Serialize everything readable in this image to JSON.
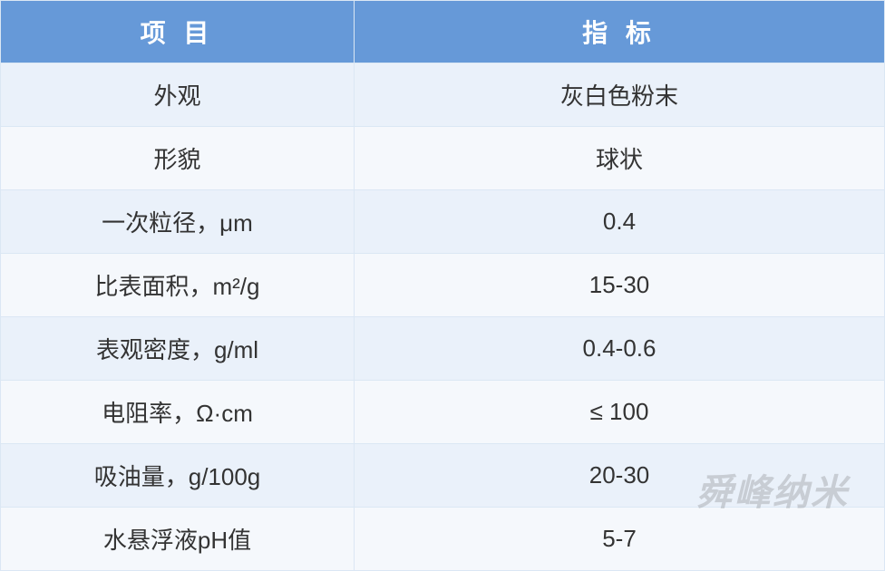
{
  "table": {
    "header_bg": "#6699d8",
    "header_text_color": "#ffffff",
    "row_bg_odd": "#eaf1fa",
    "row_bg_even": "#f5f8fc",
    "border_color": "#dbe7f4",
    "text_color": "#333333",
    "header_fontsize": 28,
    "cell_fontsize": 26,
    "columns": [
      {
        "label": "项 目",
        "width": "40%"
      },
      {
        "label": "指 标",
        "width": "60%"
      }
    ],
    "rows": [
      {
        "name": "外观",
        "value": "灰白色粉末"
      },
      {
        "name": "形貌",
        "value": "球状"
      },
      {
        "name": "一次粒径，μm",
        "value": "0.4"
      },
      {
        "name": "比表面积，m²/g",
        "value": "15-30"
      },
      {
        "name": "表观密度，g/ml",
        "value": "0.4-0.6"
      },
      {
        "name": "电阻率，Ω·cm",
        "value": "≤ 100"
      },
      {
        "name": "吸油量，g/100g",
        "value": "20-30"
      },
      {
        "name": "水悬浮液pH值",
        "value": "5-7"
      }
    ]
  },
  "watermark": {
    "text": "舜峰纳米",
    "color": "rgba(100,100,100,0.25)",
    "fontsize": 40
  }
}
